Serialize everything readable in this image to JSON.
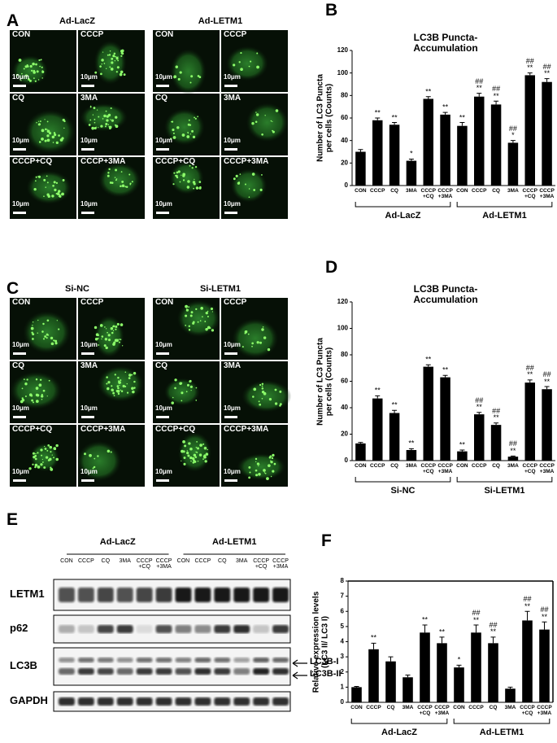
{
  "figure": {
    "A": {
      "letter": "A",
      "scale_bar": "10μm",
      "groups": [
        {
          "title": "Ad-LacZ",
          "images": [
            "CON",
            "CCCP",
            "CQ",
            "3MA",
            "CCCP+CQ",
            "CCCP+3MA"
          ]
        },
        {
          "title": "Ad-LETM1",
          "images": [
            "CON",
            "CCCP",
            "CQ",
            "3MA",
            "CCCP+CQ",
            "CCCP+3MA"
          ]
        }
      ]
    },
    "C": {
      "letter": "C",
      "scale_bar": "10μm",
      "groups": [
        {
          "title": "Si-NC",
          "images": [
            "CON",
            "CCCP",
            "CQ",
            "3MA",
            "CCCP+CQ",
            "CCCP+3MA"
          ]
        },
        {
          "title": "Si-LETM1",
          "images": [
            "CON",
            "CCCP",
            "CQ",
            "3MA",
            "CCCP+CQ",
            "CCCP+3MA"
          ]
        }
      ]
    },
    "E": {
      "letter": "E",
      "groups": [
        "Ad-LacZ",
        "Ad-LETM1"
      ],
      "lanes": [
        "CON",
        "CCCP",
        "CQ",
        "3MA",
        "CCCP\n+CQ",
        "CCCP\n+3MA",
        "CON",
        "CCCP",
        "CQ",
        "3MA",
        "CCCP\n+CQ",
        "CCCP\n+3MA"
      ],
      "rows": [
        "LETM1",
        "p62",
        "LC3B",
        "GAPDH"
      ],
      "arrows": [
        "LC3B-I",
        "LC3B-II"
      ]
    }
  },
  "chart_data": [
    {
      "type": "bar",
      "panel": "B",
      "title": "LC3B Puncta-Accumulation",
      "ylabel": "Number of LC3 Puncta\nper cells (Counts)",
      "categories": [
        "CON",
        "CCCP",
        "CQ",
        "3MA",
        "CCCP\n+CQ",
        "CCCP\n+3MA",
        "CON",
        "CCCP",
        "CQ",
        "3MA",
        "CCCP\n+CQ",
        "CCCP\n+3MA"
      ],
      "groups": [
        "Ad-LacZ",
        "Ad-LETM1"
      ],
      "values": [
        30,
        58,
        54,
        22,
        77,
        63,
        53,
        79,
        72,
        38,
        98,
        92
      ],
      "errors": [
        2,
        2,
        2,
        1.5,
        2,
        2,
        3,
        3,
        3,
        2,
        2,
        3
      ],
      "annotations": [
        null,
        "**",
        "**",
        "*",
        "**",
        "**",
        "**",
        "##\n**",
        "##\n**",
        "##\n*",
        "##\n**",
        "##\n**"
      ],
      "color": "#000000",
      "ylim": [
        0,
        120
      ],
      "yticks": [
        0,
        20,
        40,
        60,
        80,
        100,
        120
      ],
      "frame": false
    },
    {
      "type": "bar",
      "panel": "D",
      "title": "LC3B Puncta-Accumulation",
      "ylabel": "Number of LC3 Puncta\nper cells (Counts)",
      "categories": [
        "CON",
        "CCCP",
        "CQ",
        "3MA",
        "CCCP\n+CQ",
        "CCCP\n+3MA",
        "CON",
        "CCCP",
        "CQ",
        "3MA",
        "CCCP\n+CQ",
        "CCCP\n+3MA"
      ],
      "groups": [
        "Si-NC",
        "Si-LETM1"
      ],
      "values": [
        13,
        47,
        36,
        8,
        71,
        63,
        7,
        35,
        27,
        3,
        59,
        54
      ],
      "errors": [
        0.8,
        2,
        2,
        1,
        1.5,
        1.5,
        1,
        1.5,
        1.5,
        0.5,
        2,
        2
      ],
      "annotations": [
        null,
        "**",
        "**",
        "**",
        "**",
        "**",
        "**",
        "##\n**",
        "##\n**",
        "##\n**",
        "##\n**",
        "##\n**"
      ],
      "color": "#000000",
      "ylim": [
        0,
        120
      ],
      "yticks": [
        0,
        20,
        40,
        60,
        80,
        100,
        120
      ],
      "frame": false
    },
    {
      "type": "bar",
      "panel": "F",
      "ylabel": "Relative expression levels\n(LC3 II/ LC3 I)",
      "categories": [
        "CON",
        "CCCP",
        "CQ",
        "3MA",
        "CCCP\n+CQ",
        "CCCP\n+3MA",
        "CON",
        "CCCP",
        "CQ",
        "3MA",
        "CCCP\n+CQ",
        "CCCP\n+3MA"
      ],
      "groups": [
        "Ad-LacZ",
        "Ad-LETM1"
      ],
      "values": [
        1.0,
        3.5,
        2.7,
        1.65,
        4.6,
        3.9,
        2.3,
        4.6,
        3.9,
        0.9,
        5.4,
        4.8
      ],
      "errors": [
        0.05,
        0.4,
        0.3,
        0.15,
        0.5,
        0.4,
        0.15,
        0.5,
        0.4,
        0.1,
        0.6,
        0.5
      ],
      "annotations": [
        null,
        "**",
        null,
        null,
        "**",
        "**",
        "*",
        "##\n**",
        "##\n**",
        null,
        "##\n**",
        "##\n**"
      ],
      "color": "#000000",
      "ylim": [
        0,
        8
      ],
      "yticks": [
        0,
        1,
        2,
        3,
        4,
        5,
        6,
        7,
        8
      ],
      "frame": true
    }
  ]
}
